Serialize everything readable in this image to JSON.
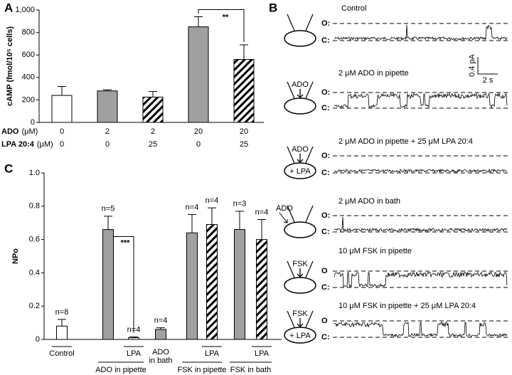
{
  "chart_data": [
    {
      "type": "bar",
      "panel_label": "A",
      "ylabel": "cAMP (fmol/10⁵ cells)",
      "values": [
        240,
        280,
        225,
        850,
        560
      ],
      "errors": [
        80,
        10,
        50,
        90,
        130
      ],
      "styles": [
        "open",
        "gray",
        "hatched",
        "gray",
        "hatched"
      ],
      "ylim": [
        0,
        1000
      ],
      "yticks": [
        0,
        200,
        400,
        600,
        800,
        {
          "value": 1000,
          "label": "1,000"
        }
      ],
      "conditions": [
        {
          "label": "ADO",
          "unit": "(μM)",
          "values": [
            0,
            2,
            2,
            20,
            20
          ]
        },
        {
          "label": "LPA 20:4",
          "unit": "(μM)",
          "values": [
            0,
            0,
            25,
            0,
            25
          ]
        }
      ],
      "brackets": [
        {
          "label": "**",
          "bars": [
            3,
            4
          ]
        }
      ]
    },
    {
      "type": "bar",
      "panel_label": "C",
      "ylabel": "NPo",
      "values": [
        0.08,
        0.66,
        0.01,
        0.06,
        0.64,
        0.69,
        0.66,
        0.6
      ],
      "errors": [
        0.04,
        0.08,
        0.005,
        0.01,
        0.11,
        0.1,
        0.11,
        0.12
      ],
      "value_labels": [
        "n=8",
        "n=5",
        "n=4",
        "n=4",
        "n=4",
        "n=4",
        "n=3",
        "n=4"
      ],
      "styles": [
        "open",
        "gray",
        "open",
        "gray",
        "gray",
        "hatched",
        "gray",
        "hatched"
      ],
      "categories": [
        "Control",
        null,
        "LPA",
        "ADO in bath",
        null,
        "LPA",
        null,
        "LPA"
      ],
      "groups": [
        {
          "label": "ADO in pipette",
          "bars": [
            1,
            2
          ]
        },
        {
          "label": "FSK in pipette",
          "bars": [
            4,
            5
          ]
        },
        {
          "label": "FSK in bath",
          "bars": [
            6,
            7
          ]
        }
      ],
      "ylim": [
        0,
        1
      ],
      "yticks": [
        0,
        0.2,
        0.4,
        0.6,
        0.8,
        {
          "value": 1,
          "label": "1.0"
        }
      ],
      "brackets": [
        {
          "label": "***",
          "bars": [
            1,
            2
          ]
        }
      ]
    }
  ],
  "panel_b": {
    "label": "B",
    "scale": {
      "current": "0.4 pA",
      "time": "2 s"
    },
    "rows": [
      {
        "title": "Control",
        "open_label": "O:",
        "closed_label": "C:"
      },
      {
        "title": "2 μM ADO in pipette",
        "open_label": "O:",
        "closed_label": "C:",
        "drug": "ADO"
      },
      {
        "title": "2 μM ADO in pipette + 25 μM LPA 20:4",
        "open_label": "O:",
        "closed_label": "C:",
        "drug": "ADO",
        "cell_label": "+ LPA"
      },
      {
        "title": "2 μM ADO in bath",
        "open_label": "O:",
        "closed_label": "C:",
        "drug": "ADO"
      },
      {
        "title": "10 μM FSK in pipette",
        "open_label": "O",
        "closed_label": "C:",
        "drug": "FSK"
      },
      {
        "title": "10 μM FSK in pipette + 25 μM LPA 20:4",
        "open_label": "O",
        "closed_label": "C:",
        "drug": "FSK",
        "cell_label": "+ LPA"
      }
    ]
  }
}
